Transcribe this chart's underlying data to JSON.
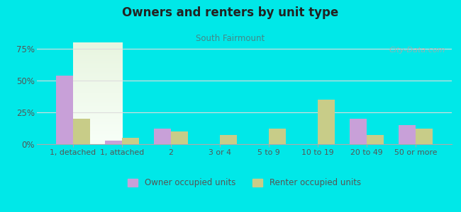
{
  "title": "Owners and renters by unit type",
  "subtitle": "South Fairmount",
  "categories": [
    "1, detached",
    "1, attached",
    "2",
    "3 or 4",
    "5 to 9",
    "10 to 19",
    "20 to 49",
    "50 or more"
  ],
  "owner_values": [
    54,
    3,
    12,
    0,
    0,
    0,
    20,
    15
  ],
  "renter_values": [
    20,
    5,
    10,
    7,
    12,
    35,
    7,
    12
  ],
  "owner_color": "#c8a0d8",
  "renter_color": "#c8cc88",
  "background_color": "#00e8e8",
  "yticks": [
    0,
    25,
    50,
    75
  ],
  "ylim": [
    0,
    80
  ],
  "bar_width": 0.35,
  "legend_owner": "Owner occupied units",
  "legend_renter": "Renter occupied units",
  "watermark": "City-Data.com",
  "title_color": "#222222",
  "subtitle_color": "#448888",
  "tick_color": "#555555",
  "grid_color": "#dddddd"
}
